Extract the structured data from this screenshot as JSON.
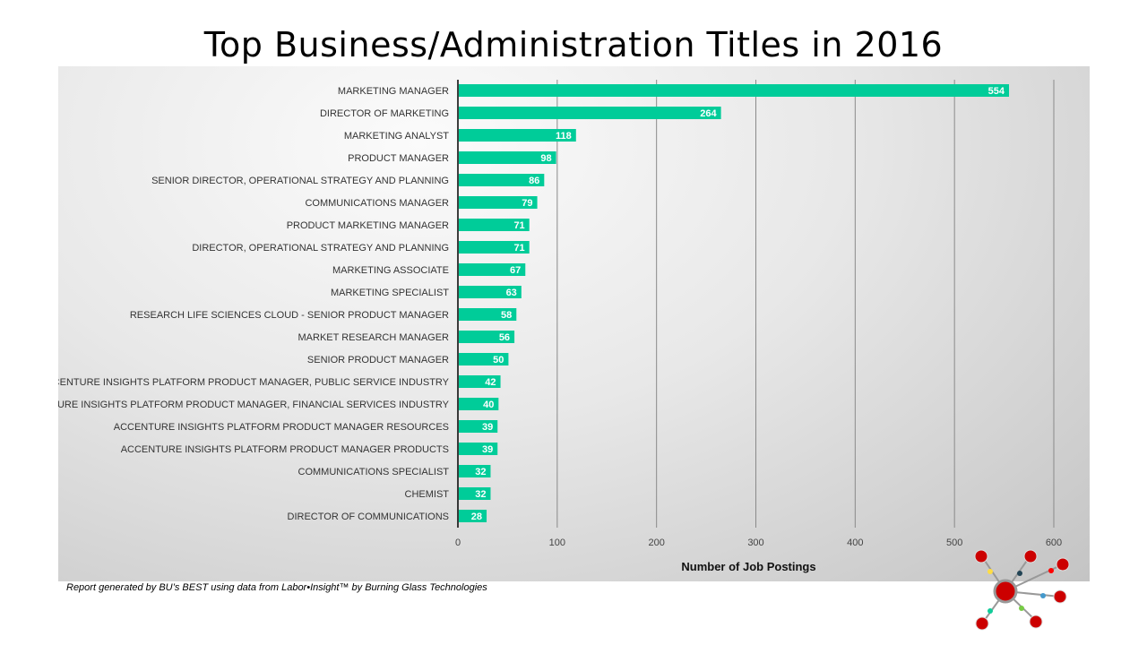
{
  "chart_data": {
    "type": "bar",
    "orientation": "horizontal",
    "title": "Top Business/Administration Titles in 2016",
    "xlabel": "Number of Job Postings",
    "ylabel": "",
    "xlim": [
      0,
      600
    ],
    "xticks": [
      0,
      100,
      200,
      300,
      400,
      500,
      600
    ],
    "grid": true,
    "bar_color": "#00CC99",
    "categories": [
      "MARKETING MANAGER",
      "DIRECTOR OF MARKETING",
      "MARKETING ANALYST",
      "PRODUCT MANAGER",
      "SENIOR DIRECTOR, OPERATIONAL STRATEGY AND PLANNING",
      "COMMUNICATIONS MANAGER",
      "PRODUCT MARKETING MANAGER",
      "DIRECTOR, OPERATIONAL STRATEGY AND PLANNING",
      "MARKETING ASSOCIATE",
      "MARKETING SPECIALIST",
      "RESEARCH LIFE SCIENCES CLOUD - SENIOR PRODUCT MANAGER",
      "MARKET RESEARCH MANAGER",
      "SENIOR PRODUCT MANAGER",
      "ACCENTURE INSIGHTS PLATFORM PRODUCT MANAGER, PUBLIC SERVICE INDUSTRY",
      "ACCENTURE INSIGHTS PLATFORM PRODUCT MANAGER, FINANCIAL SERVICES INDUSTRY",
      "ACCENTURE INSIGHTS PLATFORM PRODUCT MANAGER RESOURCES",
      "ACCENTURE INSIGHTS PLATFORM PRODUCT MANAGER PRODUCTS",
      "COMMUNICATIONS SPECIALIST",
      "CHEMIST",
      "DIRECTOR OF COMMUNICATIONS"
    ],
    "values": [
      554,
      264,
      118,
      98,
      86,
      79,
      71,
      71,
      67,
      63,
      58,
      56,
      50,
      42,
      40,
      39,
      39,
      32,
      32,
      28
    ]
  },
  "footer": "Report generated by BU’s BEST using data from Labor•Insight™ by Burning Glass Technologies",
  "logo_icon": "network-nodes-icon"
}
